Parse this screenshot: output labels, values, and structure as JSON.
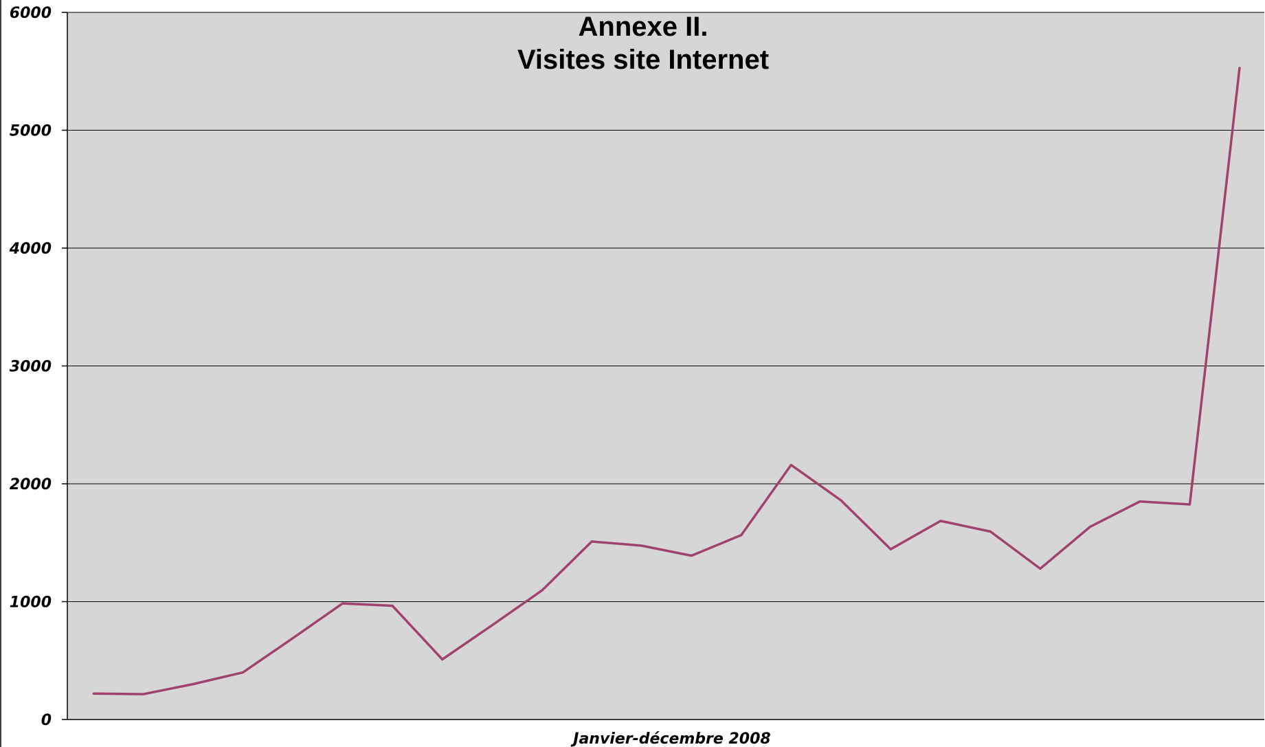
{
  "chart_data": {
    "type": "line",
    "title_lines": [
      "Annexe II.",
      "Visites site Internet"
    ],
    "xlabel": "Janvier-décembre 2008",
    "ylabel": "",
    "ylim": [
      0,
      6000
    ],
    "yticks": [
      "0",
      "1000",
      "2000",
      "3000",
      "4000",
      "5000",
      "6000"
    ],
    "grid": true,
    "legend": "none",
    "series": [
      {
        "color": "#a0426e",
        "values": [
          220,
          215,
          300,
          400,
          690,
          985,
          965,
          510,
          800,
          1095,
          1510,
          1475,
          1390,
          1565,
          2160,
          1860,
          1445,
          1685,
          1595,
          1280,
          1635,
          1850,
          1825,
          5530
        ]
      }
    ]
  },
  "colors": {
    "plot_background": "#d6d6d6",
    "gridline": "#000000",
    "line": "#a0426e"
  }
}
